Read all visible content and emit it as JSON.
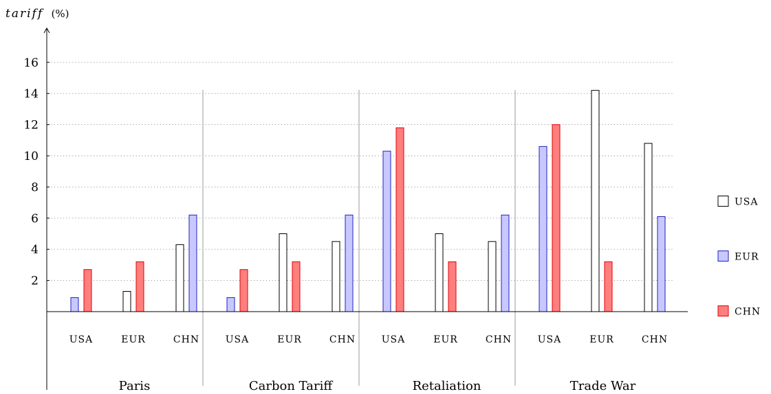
{
  "chart_data": {
    "type": "bar",
    "ylabel": "tariff",
    "ylabel_unit": "(%)",
    "ylim": [
      0,
      17.5
    ],
    "yticks": [
      2,
      4,
      6,
      8,
      10,
      12,
      14,
      16
    ],
    "grid": true,
    "legend_position": "right",
    "groups": [
      {
        "scenario": "Paris",
        "clusters": [
          {
            "label": "USA",
            "values": {
              "USA": null,
              "EUR": 0.9,
              "CHN": 2.7
            }
          },
          {
            "label": "EUR",
            "values": {
              "USA": 1.3,
              "EUR": null,
              "CHN": 3.2
            }
          },
          {
            "label": "CHN",
            "values": {
              "USA": 4.3,
              "EUR": 6.2,
              "CHN": null
            }
          }
        ]
      },
      {
        "scenario": "Carbon Tariff",
        "clusters": [
          {
            "label": "USA",
            "values": {
              "USA": null,
              "EUR": 0.9,
              "CHN": 2.7
            }
          },
          {
            "label": "EUR",
            "values": {
              "USA": 5.0,
              "EUR": null,
              "CHN": 3.2
            }
          },
          {
            "label": "CHN",
            "values": {
              "USA": 4.5,
              "EUR": 6.2,
              "CHN": null
            }
          }
        ]
      },
      {
        "scenario": "Retaliation",
        "clusters": [
          {
            "label": "USA",
            "values": {
              "USA": null,
              "EUR": 10.3,
              "CHN": 11.8
            }
          },
          {
            "label": "EUR",
            "values": {
              "USA": 5.0,
              "EUR": null,
              "CHN": 3.2
            }
          },
          {
            "label": "CHN",
            "values": {
              "USA": 4.5,
              "EUR": 6.2,
              "CHN": null
            }
          }
        ]
      },
      {
        "scenario": "Trade War",
        "clusters": [
          {
            "label": "USA",
            "values": {
              "USA": null,
              "EUR": 10.6,
              "CHN": 12.0
            }
          },
          {
            "label": "EUR",
            "values": {
              "USA": 14.2,
              "EUR": null,
              "CHN": 3.2
            }
          },
          {
            "label": "CHN",
            "values": {
              "USA": 10.8,
              "EUR": 6.1,
              "CHN": null
            }
          }
        ]
      }
    ],
    "series": [
      {
        "name": "USA",
        "fill": "#ffffff",
        "stroke": "#000000"
      },
      {
        "name": "EUR",
        "fill": "#c8c8ff",
        "stroke": "#2020c0"
      },
      {
        "name": "CHN",
        "fill": "#ff7f7f",
        "stroke": "#e00000"
      }
    ]
  }
}
